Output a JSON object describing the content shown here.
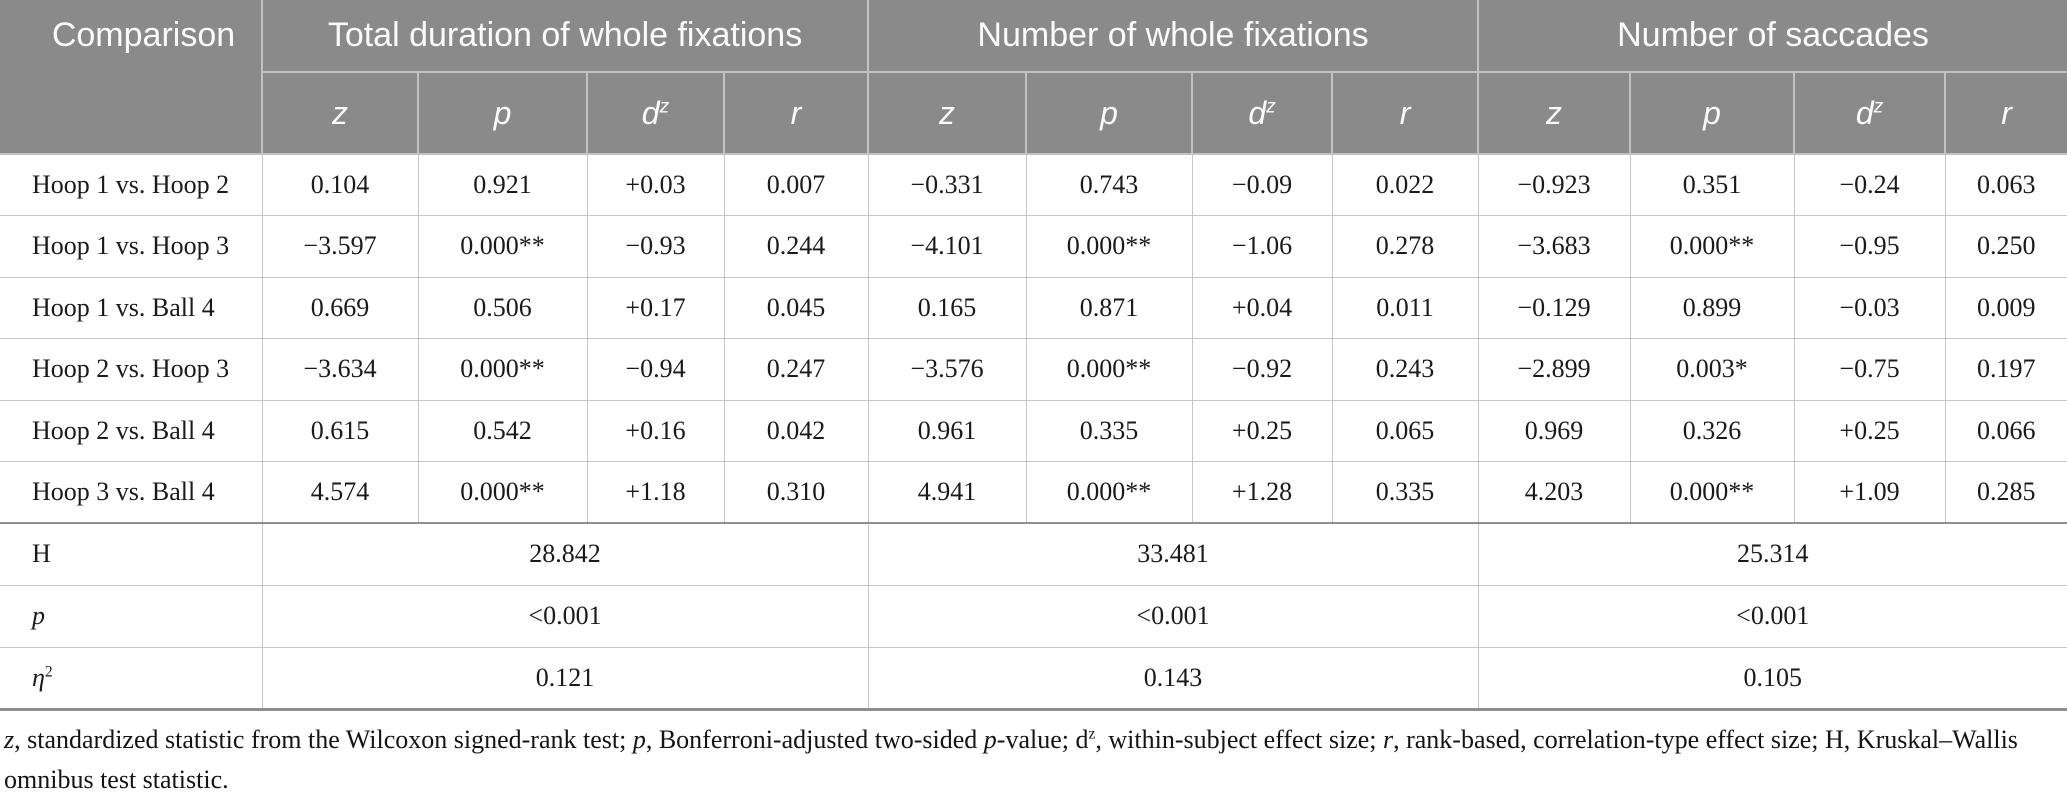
{
  "colors": {
    "header_bg": "#8a8a8a",
    "header_text": "#fafafa",
    "header_line": "#c2c2c2",
    "body_line": "#c6c6c6",
    "strong_line": "#8f8f8f"
  },
  "table": {
    "corner_label": "Comparison",
    "groups": [
      {
        "label": "Total duration of whole fixations"
      },
      {
        "label": "Number of whole fixations"
      },
      {
        "label": "Number of saccades"
      }
    ],
    "stat_headers": [
      {
        "segments": [
          {
            "text": "z",
            "italic": true
          }
        ]
      },
      {
        "segments": [
          {
            "text": "p",
            "italic": true
          }
        ]
      },
      {
        "segments": [
          {
            "text": "d",
            "italic": true
          },
          {
            "text": "z",
            "sup": true,
            "italic": true
          }
        ]
      },
      {
        "segments": [
          {
            "text": "r",
            "italic": true
          }
        ]
      }
    ],
    "rows": [
      {
        "label": "Hoop 1 vs. Hoop 2",
        "cells": [
          "0.104",
          "0.921",
          "+0.03",
          "0.007",
          "−0.331",
          "0.743",
          "−0.09",
          "0.022",
          "−0.923",
          "0.351",
          "−0.24",
          "0.063"
        ]
      },
      {
        "label": "Hoop 1 vs. Hoop 3",
        "cells": [
          "−3.597",
          "0.000**",
          "−0.93",
          "0.244",
          "−4.101",
          "0.000**",
          "−1.06",
          "0.278",
          "−3.683",
          "0.000**",
          "−0.95",
          "0.250"
        ]
      },
      {
        "label": "Hoop 1 vs. Ball 4",
        "cells": [
          "0.669",
          "0.506",
          "+0.17",
          "0.045",
          "0.165",
          "0.871",
          "+0.04",
          "0.011",
          "−0.129",
          "0.899",
          "−0.03",
          "0.009"
        ]
      },
      {
        "label": "Hoop 2 vs. Hoop 3",
        "cells": [
          "−3.634",
          "0.000**",
          "−0.94",
          "0.247",
          "−3.576",
          "0.000**",
          "−0.92",
          "0.243",
          "−2.899",
          "0.003*",
          "−0.75",
          "0.197"
        ]
      },
      {
        "label": "Hoop 2 vs. Ball 4",
        "cells": [
          "0.615",
          "0.542",
          "+0.16",
          "0.042",
          "0.961",
          "0.335",
          "+0.25",
          "0.065",
          "0.969",
          "0.326",
          "+0.25",
          "0.066"
        ]
      },
      {
        "label": "Hoop 3 vs. Ball 4",
        "cells": [
          "4.574",
          "0.000**",
          "+1.18",
          "0.310",
          "4.941",
          "0.000**",
          "+1.28",
          "0.335",
          "4.203",
          "0.000**",
          "+1.09",
          "0.285"
        ]
      }
    ],
    "summary_rows": [
      {
        "label_segments": [
          {
            "text": "H"
          }
        ],
        "values": [
          "28.842",
          "33.481",
          "25.314"
        ]
      },
      {
        "label_segments": [
          {
            "text": "p",
            "italic": true
          }
        ],
        "values": [
          "<0.001",
          "<0.001",
          "<0.001"
        ]
      },
      {
        "label_segments": [
          {
            "text": "η",
            "italic": true
          },
          {
            "text": "2",
            "sup": true
          }
        ],
        "values": [
          "0.121",
          "0.143",
          "0.105"
        ]
      }
    ]
  },
  "footnote": {
    "segments": [
      {
        "text": "z",
        "italic": true
      },
      {
        "text": ", standardized statistic from the Wilcoxon signed-rank test; "
      },
      {
        "text": "p",
        "italic": true
      },
      {
        "text": ", Bonferroni-adjusted two-sided "
      },
      {
        "text": "p",
        "italic": true
      },
      {
        "text": "-value; d"
      },
      {
        "text": "z",
        "sup": true
      },
      {
        "text": ", within-subject effect size; "
      },
      {
        "text": "r",
        "italic": true
      },
      {
        "text": ", rank-based, correlation-type effect size; H, Kruskal–Wallis omnibus test statistic."
      }
    ]
  }
}
